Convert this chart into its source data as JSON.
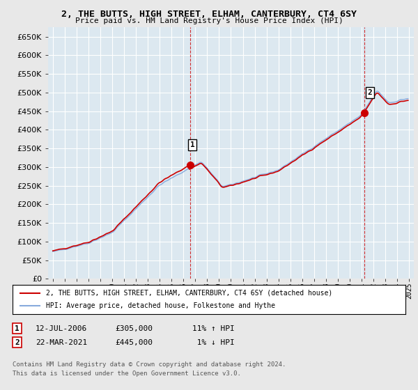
{
  "title": "2, THE BUTTS, HIGH STREET, ELHAM, CANTERBURY, CT4 6SY",
  "subtitle": "Price paid vs. HM Land Registry's House Price Index (HPI)",
  "sale1_date": "12-JUL-2006",
  "sale1_price": 305000,
  "sale1_label": "1",
  "sale1_hpi_pct": "11% ↑ HPI",
  "sale2_date": "22-MAR-2021",
  "sale2_price": 445000,
  "sale2_label": "2",
  "sale2_hpi_pct": "1% ↓ HPI",
  "legend_house": "2, THE BUTTS, HIGH STREET, ELHAM, CANTERBURY, CT4 6SY (detached house)",
  "legend_hpi": "HPI: Average price, detached house, Folkestone and Hythe",
  "footer1": "Contains HM Land Registry data © Crown copyright and database right 2024.",
  "footer2": "This data is licensed under the Open Government Licence v3.0.",
  "house_color": "#cc0000",
  "hpi_color": "#88aadd",
  "background_color": "#e8e8e8",
  "plot_bg_color": "#dce8f0",
  "grid_color": "#ffffff",
  "ylim_min": 0,
  "ylim_max": 675000,
  "sale1_year_f": 2006.54,
  "sale2_year_f": 2021.21,
  "start_year": 1995,
  "end_year": 2025
}
